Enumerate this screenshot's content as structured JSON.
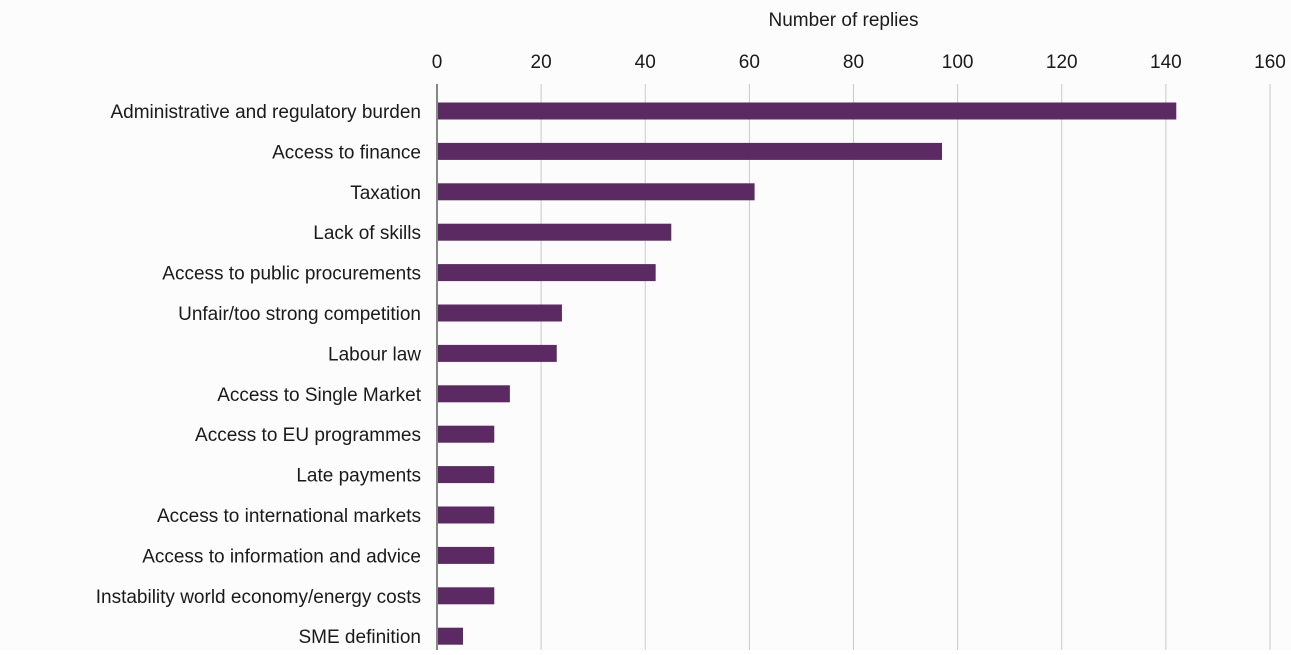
{
  "chart_data": {
    "type": "bar",
    "orientation": "horizontal",
    "title": "",
    "xlabel": "Number of replies",
    "ylabel": "",
    "xlim": [
      0,
      160
    ],
    "x_ticks": [
      "0",
      "20",
      "40",
      "60",
      "80",
      "100",
      "120",
      "140",
      "160"
    ],
    "x_axis_position": "top",
    "grid": true,
    "legend": "none",
    "bar_color": "#5c2a62",
    "categories": [
      "Administrative and regulatory burden",
      "Access to finance",
      "Taxation",
      "Lack of skills",
      "Access to public procurements",
      "Unfair/too strong competition",
      "Labour law",
      "Access to Single Market",
      "Access to EU programmes",
      "Late payments",
      "Access to international markets",
      "Access to information and advice",
      "Instability world economy/energy costs",
      "SME definition"
    ],
    "values": [
      142,
      97,
      61,
      45,
      42,
      24,
      23,
      14,
      11,
      11,
      11,
      11,
      11,
      5
    ]
  }
}
